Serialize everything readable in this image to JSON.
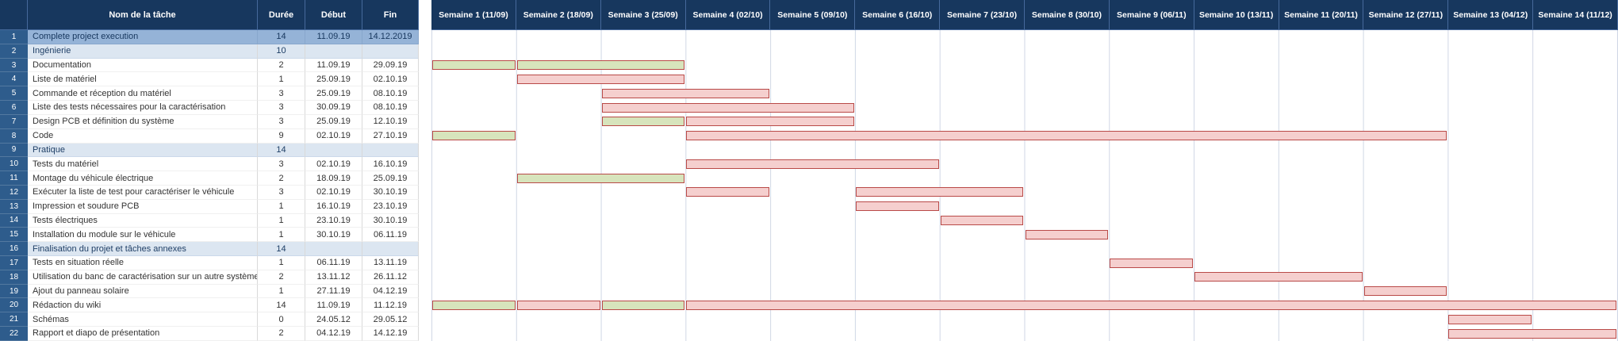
{
  "colors": {
    "header_bg": "#17375E",
    "row_number_bg": "#2E5C8C",
    "selected_row_bg": "#95B3D7",
    "section_row_bg": "#DCE6F1",
    "bar_pink_fill": "#F5CFCE",
    "bar_green_fill": "#D7E4BC",
    "bar_border": "#B94A48",
    "gridline": "#D0D7E5"
  },
  "weeks": [
    "Semaine 1 (11/09)",
    "Semaine 2 (18/09)",
    "Semaine 3 (25/09)",
    "Semaine 4 (02/10)",
    "Semaine 5 (09/10)",
    "Semaine 6 (16/10)",
    "Semaine 7 (23/10)",
    "Semaine 8 (30/10)",
    "Semaine 9 (06/11)",
    "Semaine 10 (13/11)",
    "Semaine 11 (20/11)",
    "Semaine 12 (27/11)",
    "Semaine 13 (04/12)",
    "Semaine 14 (11/12)"
  ],
  "table": {
    "headers": {
      "num": "",
      "name": "Nom de la tâche",
      "duration": "Durée",
      "start": "Début",
      "end": "Fin"
    },
    "rows": [
      {
        "num": "1",
        "name": "Complete project execution",
        "duration": "14",
        "start": "11.09.19",
        "end": "14.12.2019",
        "style": "selected",
        "bars": []
      },
      {
        "num": "2",
        "name": "Ingénierie",
        "duration": "10",
        "start": "",
        "end": "",
        "style": "section",
        "bars": []
      },
      {
        "num": "3",
        "name": "Documentation",
        "duration": "2",
        "start": "11.09.19",
        "end": "29.09.19",
        "style": "normal",
        "bars": [
          {
            "from": 1,
            "to": 1,
            "color": "green"
          },
          {
            "from": 2,
            "to": 3,
            "color": "green"
          }
        ]
      },
      {
        "num": "4",
        "name": "Liste de matériel",
        "duration": "1",
        "start": "25.09.19",
        "end": "02.10.19",
        "style": "normal",
        "bars": [
          {
            "from": 2,
            "to": 3,
            "color": "pink"
          }
        ]
      },
      {
        "num": "5",
        "name": "Commande et réception du matériel",
        "duration": "3",
        "start": "25.09.19",
        "end": "08.10.19",
        "style": "normal",
        "bars": [
          {
            "from": 3,
            "to": 4,
            "color": "pink"
          }
        ]
      },
      {
        "num": "6",
        "name": "Liste des tests nécessaires pour la caractérisation",
        "duration": "3",
        "start": "30.09.19",
        "end": "08.10.19",
        "style": "normal",
        "bars": [
          {
            "from": 3,
            "to": 5,
            "color": "pink"
          }
        ]
      },
      {
        "num": "7",
        "name": "Design PCB et définition du système",
        "duration": "3",
        "start": "25.09.19",
        "end": "12.10.19",
        "style": "normal",
        "bars": [
          {
            "from": 3,
            "to": 3,
            "color": "green"
          },
          {
            "from": 4,
            "to": 5,
            "color": "pink"
          }
        ]
      },
      {
        "num": "8",
        "name": "Code",
        "duration": "9",
        "start": "02.10.19",
        "end": "27.10.19",
        "style": "normal",
        "bars": [
          {
            "from": 1,
            "to": 1,
            "color": "green"
          },
          {
            "from": 4,
            "to": 12,
            "color": "pink"
          }
        ]
      },
      {
        "num": "9",
        "name": "Pratique",
        "duration": "14",
        "start": "",
        "end": "",
        "style": "section",
        "bars": []
      },
      {
        "num": "10",
        "name": "Tests du matériel",
        "duration": "3",
        "start": "02.10.19",
        "end": "16.10.19",
        "style": "normal",
        "bars": [
          {
            "from": 4,
            "to": 6,
            "color": "pink"
          }
        ]
      },
      {
        "num": "11",
        "name": "Montage du véhicule électrique",
        "duration": "2",
        "start": "18.09.19",
        "end": "25.09.19",
        "style": "normal",
        "bars": [
          {
            "from": 2,
            "to": 3,
            "color": "green"
          }
        ]
      },
      {
        "num": "12",
        "name": "Exécuter la liste de test pour caractériser le véhicule",
        "duration": "3",
        "start": "02.10.19",
        "end": "30.10.19",
        "style": "normal",
        "bars": [
          {
            "from": 4,
            "to": 4,
            "color": "pink"
          },
          {
            "from": 6,
            "to": 7,
            "color": "pink"
          }
        ]
      },
      {
        "num": "13",
        "name": "Impression et soudure PCB",
        "duration": "1",
        "start": "16.10.19",
        "end": "23.10.19",
        "style": "normal",
        "bars": [
          {
            "from": 6,
            "to": 6,
            "color": "pink"
          }
        ]
      },
      {
        "num": "14",
        "name": "Tests électriques",
        "duration": "1",
        "start": "23.10.19",
        "end": "30.10.19",
        "style": "normal",
        "bars": [
          {
            "from": 7,
            "to": 7,
            "color": "pink"
          }
        ]
      },
      {
        "num": "15",
        "name": "Installation du module sur le véhicule",
        "duration": "1",
        "start": "30.10.19",
        "end": "06.11.19",
        "style": "normal",
        "bars": [
          {
            "from": 8,
            "to": 8,
            "color": "pink"
          }
        ]
      },
      {
        "num": "16",
        "name": "Finalisation du projet et tâches annexes",
        "duration": "14",
        "start": "",
        "end": "",
        "style": "section",
        "bars": []
      },
      {
        "num": "17",
        "name": "Tests en situation réelle",
        "duration": "1",
        "start": "06.11.19",
        "end": "13.11.19",
        "style": "normal",
        "bars": [
          {
            "from": 9,
            "to": 9,
            "color": "pink"
          }
        ]
      },
      {
        "num": "18",
        "name": "Utilisation du banc de caractérisation sur un autre système",
        "duration": "2",
        "start": "13.11.12",
        "end": "26.11.12",
        "style": "normal",
        "bars": [
          {
            "from": 10,
            "to": 11,
            "color": "pink"
          }
        ]
      },
      {
        "num": "19",
        "name": "Ajout du panneau solaire",
        "duration": "1",
        "start": "27.11.19",
        "end": "04.12.19",
        "style": "normal",
        "bars": [
          {
            "from": 12,
            "to": 12,
            "color": "pink"
          }
        ]
      },
      {
        "num": "20",
        "name": "Rédaction du wiki",
        "duration": "14",
        "start": "11.09.19",
        "end": "11.12.19",
        "style": "normal",
        "bars": [
          {
            "from": 1,
            "to": 1,
            "color": "green"
          },
          {
            "from": 2,
            "to": 2,
            "color": "pink"
          },
          {
            "from": 3,
            "to": 3,
            "color": "green"
          },
          {
            "from": 4,
            "to": 14,
            "color": "pink"
          }
        ]
      },
      {
        "num": "21",
        "name": "Schémas",
        "duration": "0",
        "start": "24.05.12",
        "end": "29.05.12",
        "style": "normal",
        "bars": [
          {
            "from": 13,
            "to": 13,
            "color": "pink"
          }
        ]
      },
      {
        "num": "22",
        "name": "Rapport et diapo de présentation",
        "duration": "2",
        "start": "04.12.19",
        "end": "14.12.19",
        "style": "normal",
        "bars": [
          {
            "from": 13,
            "to": 14,
            "color": "pink"
          }
        ]
      }
    ]
  }
}
